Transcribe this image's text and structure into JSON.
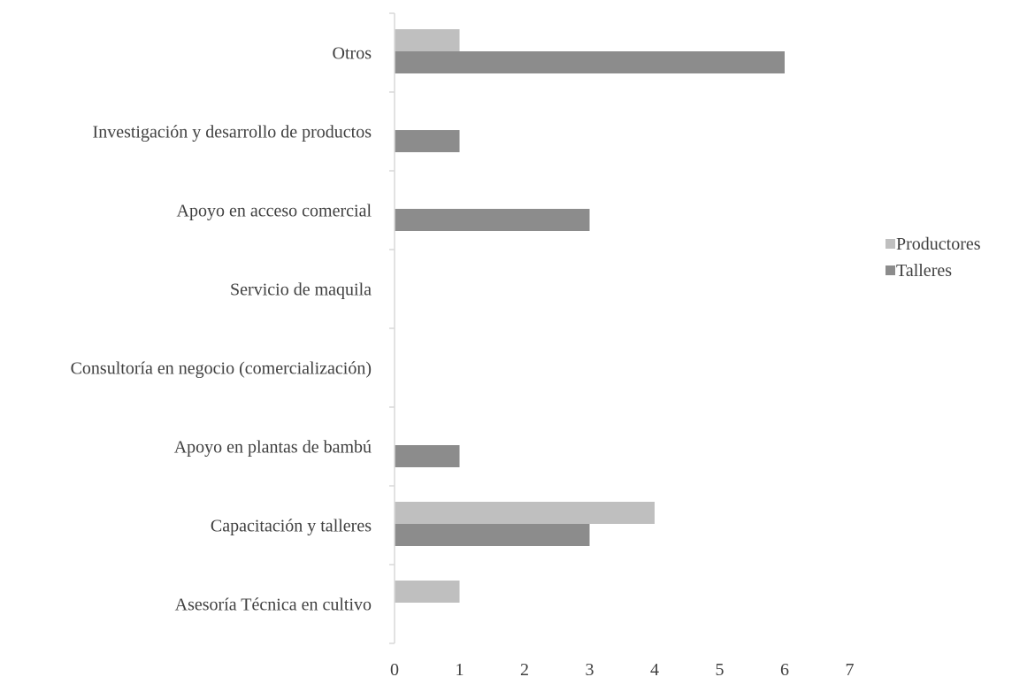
{
  "chart_data": {
    "type": "bar",
    "orientation": "horizontal",
    "title": "",
    "xlabel": "",
    "ylabel": "",
    "categories": [
      "Otros",
      "Investigación y desarrollo de productos",
      "Apoyo en acceso comercial",
      "Servicio de maquila",
      "Consultoría en negocio (comercialización)",
      "Apoyo en plantas de bambú",
      "Capacitación y talleres",
      "Asesoría Técnica en cultivo"
    ],
    "series": [
      {
        "name": "Productores",
        "color": "#bfbfbf",
        "values": [
          1,
          0,
          0,
          0,
          0,
          0,
          4,
          1
        ]
      },
      {
        "name": "Talleres",
        "color": "#8c8c8c",
        "values": [
          6,
          1,
          3,
          0,
          0,
          1,
          3,
          0
        ]
      }
    ],
    "xlim": [
      0,
      7
    ],
    "xticks": [
      "0",
      "1",
      "2",
      "3",
      "4",
      "5",
      "6",
      "7"
    ],
    "grid": false,
    "legend_position": "right"
  }
}
